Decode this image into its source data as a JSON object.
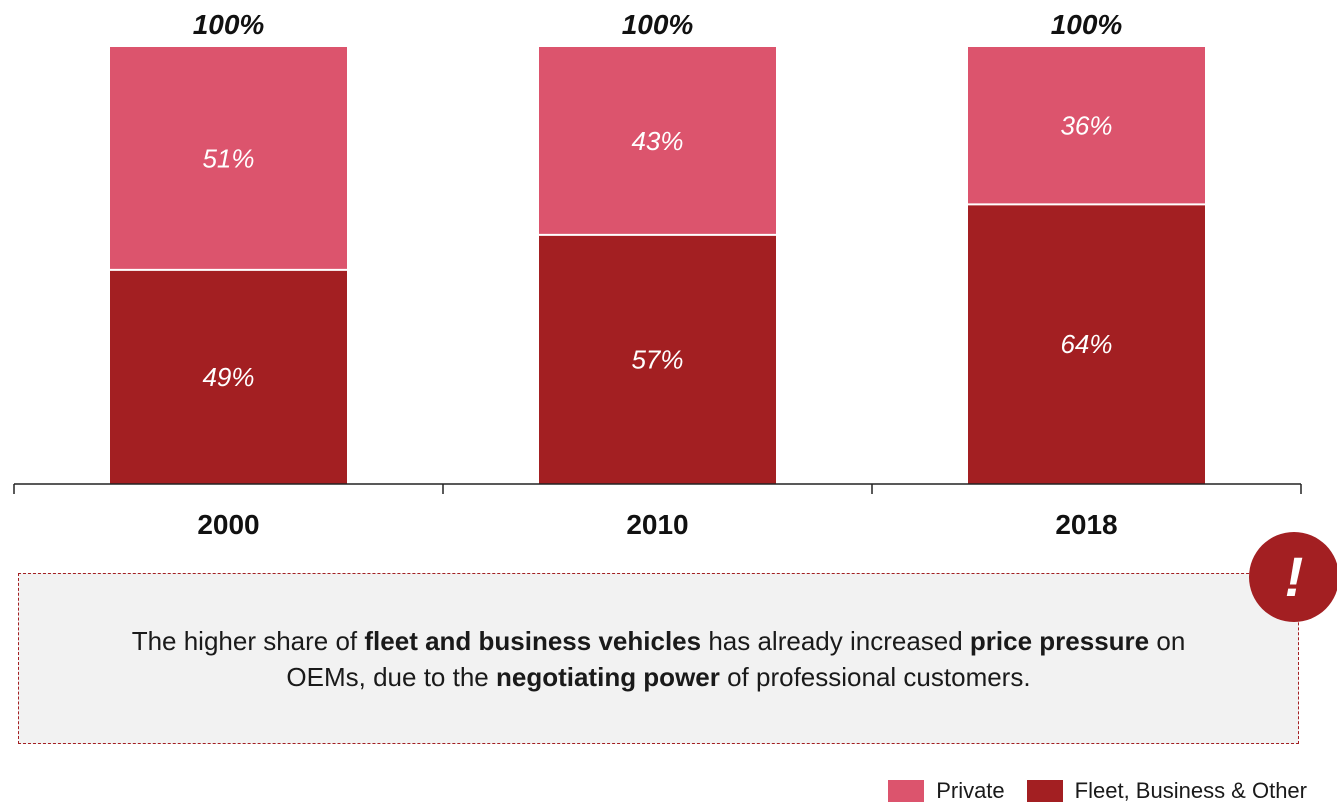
{
  "chart_data": {
    "type": "bar",
    "stacked": true,
    "categories": [
      "2000",
      "2010",
      "2018"
    ],
    "series": [
      {
        "name": "Fleet, Business & Other",
        "values": [
          49,
          57,
          64
        ],
        "labels": [
          "49%",
          "57%",
          "64%"
        ],
        "color": "#a31f22"
      },
      {
        "name": "Private",
        "values": [
          51,
          43,
          36
        ],
        "labels": [
          "51%",
          "43%",
          "36%"
        ],
        "color": "#dc546d"
      }
    ],
    "totals": [
      "100%",
      "100%",
      "100%"
    ],
    "ylim": [
      0,
      100
    ],
    "legend_position": "bottom-right"
  },
  "note": {
    "segments": [
      {
        "text": "The higher share of ",
        "bold": false
      },
      {
        "text": "fleet and business vehicles",
        "bold": true
      },
      {
        "text": " has already increased ",
        "bold": false
      },
      {
        "text": "price pressure",
        "bold": true
      },
      {
        "text": " on OEMs, due to the ",
        "bold": false
      },
      {
        "text": "negotiating power",
        "bold": true
      },
      {
        "text": " of professional customers.",
        "bold": false
      }
    ],
    "icon": "exclamation-icon",
    "badge_symbol": "!"
  },
  "legend": {
    "items": [
      {
        "label": "Private",
        "color": "#dc546d"
      },
      {
        "label": "Fleet, Business & Other",
        "color": "#a31f22"
      }
    ]
  }
}
